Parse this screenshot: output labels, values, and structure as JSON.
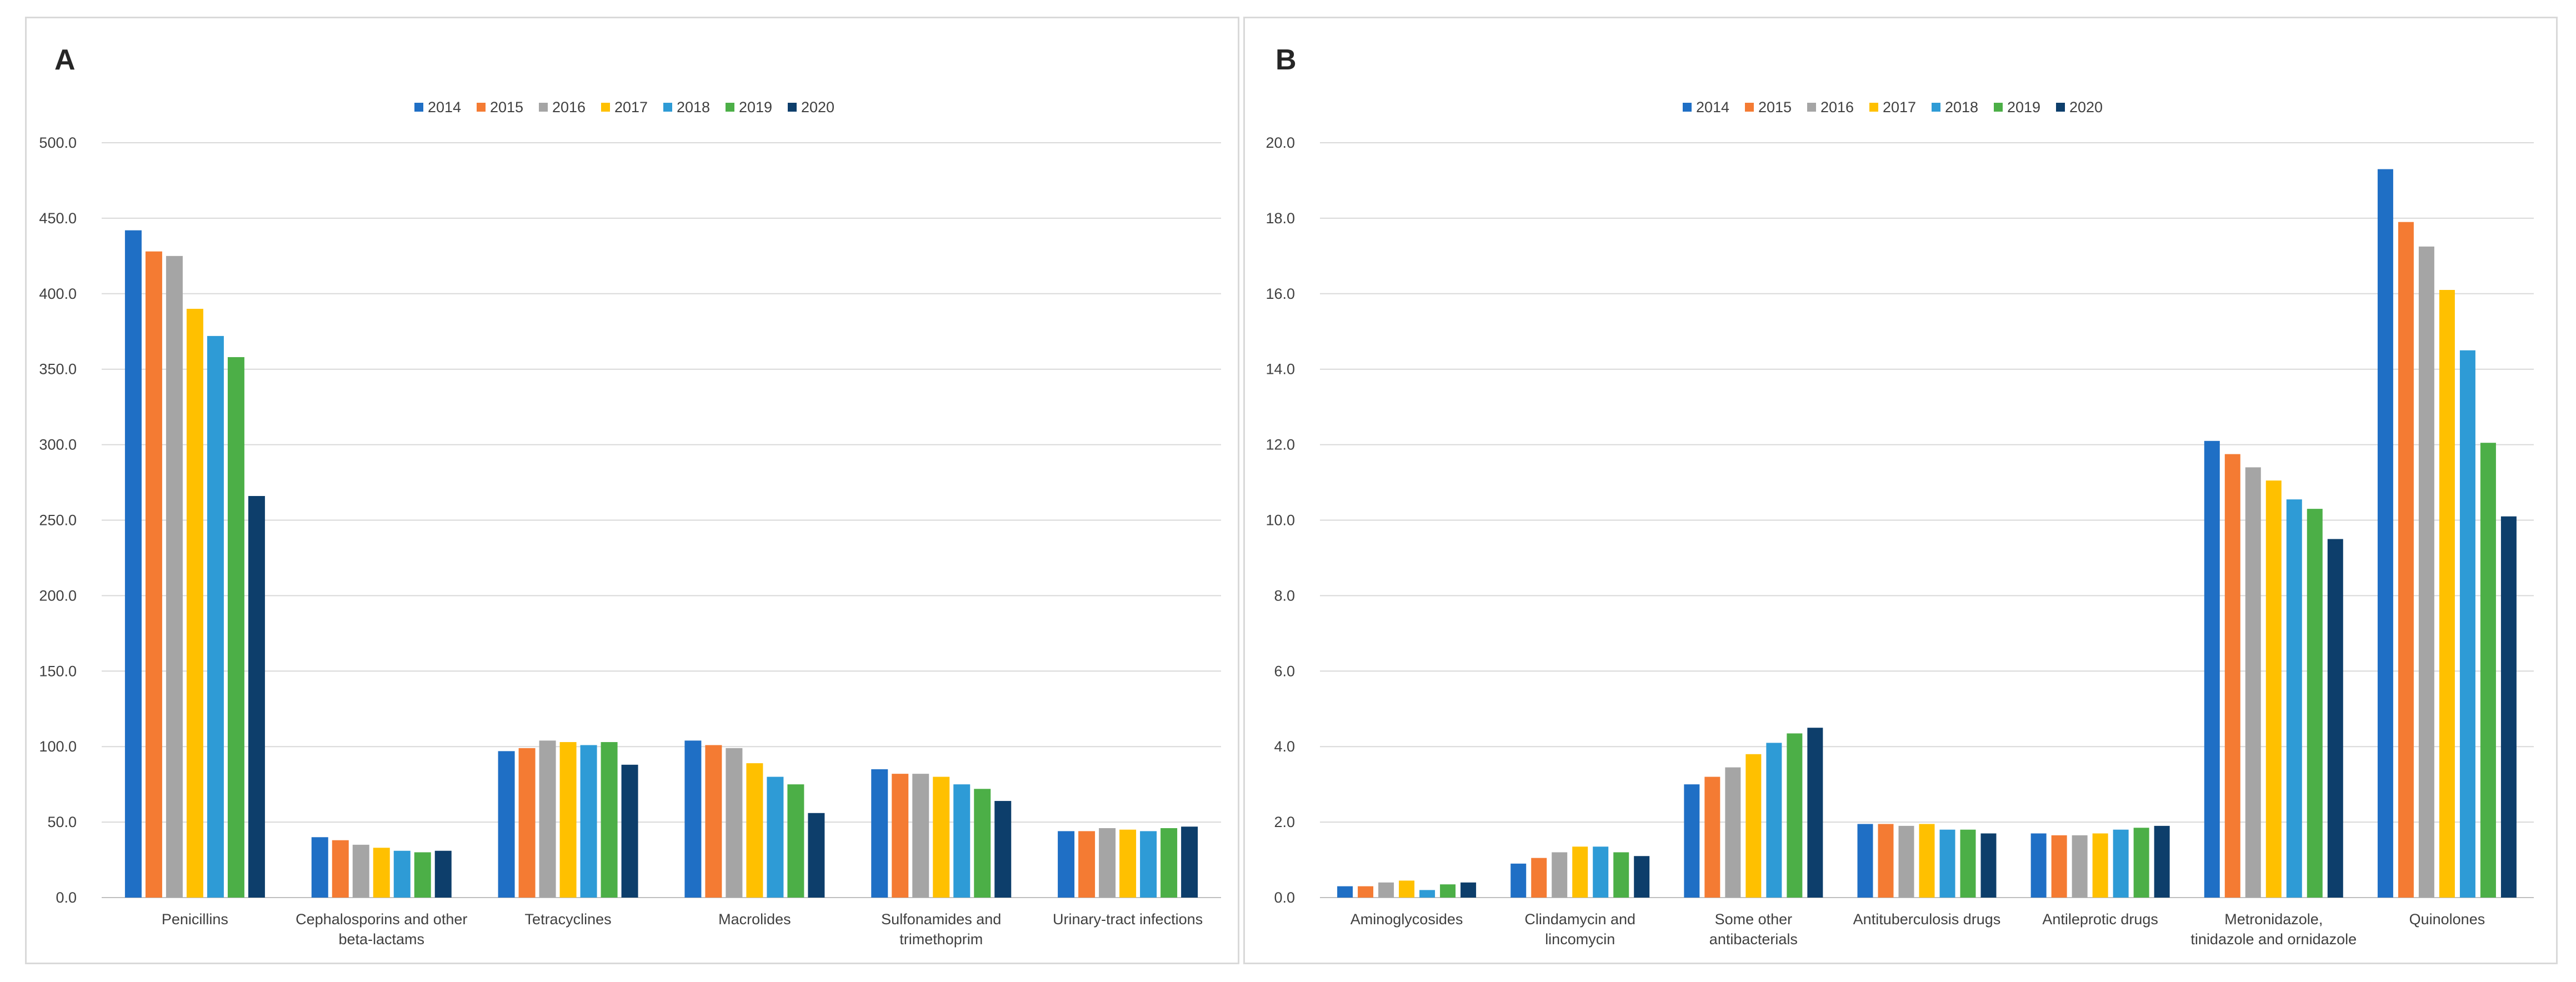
{
  "panels": [
    {
      "label": "A"
    },
    {
      "label": "B"
    }
  ],
  "chart_data": [
    {
      "type": "bar",
      "panel": "A",
      "title": "",
      "xlabel": "",
      "ylabel": "",
      "ylim": [
        0,
        500
      ],
      "yticks": [
        "0.0",
        "50.0",
        "100.0",
        "150.0",
        "200.0",
        "250.0",
        "300.0",
        "350.0",
        "400.0",
        "450.0",
        "500.0"
      ],
      "legend_position": "top-center",
      "categories": [
        [
          "Penicillins"
        ],
        [
          "Cephalosporins and other",
          "beta-lactams"
        ],
        [
          "Tetracyclines"
        ],
        [
          "Macrolides"
        ],
        [
          "Sulfonamides and",
          "trimethoprim"
        ],
        [
          "Urinary-tract infections"
        ]
      ],
      "series": [
        {
          "name": "2014",
          "color": "#1f6fc5",
          "values": [
            442,
            40,
            97,
            104,
            85,
            44
          ]
        },
        {
          "name": "2015",
          "color": "#f47b33",
          "values": [
            428,
            38,
            99,
            101,
            82,
            44
          ]
        },
        {
          "name": "2016",
          "color": "#a5a5a5",
          "values": [
            425,
            35,
            104,
            99,
            82,
            46
          ]
        },
        {
          "name": "2017",
          "color": "#ffc000",
          "values": [
            390,
            33,
            103,
            89,
            80,
            45
          ]
        },
        {
          "name": "2018",
          "color": "#2e9bd6",
          "values": [
            372,
            31,
            101,
            80,
            75,
            44
          ]
        },
        {
          "name": "2019",
          "color": "#4caf47",
          "values": [
            358,
            30,
            103,
            75,
            72,
            46
          ]
        },
        {
          "name": "2020",
          "color": "#0d3e6b",
          "values": [
            266,
            31,
            88,
            56,
            64,
            47
          ]
        }
      ]
    },
    {
      "type": "bar",
      "panel": "B",
      "title": "",
      "xlabel": "",
      "ylabel": "",
      "ylim": [
        0,
        20
      ],
      "yticks": [
        "0.0",
        "2.0",
        "4.0",
        "6.0",
        "8.0",
        "10.0",
        "12.0",
        "14.0",
        "16.0",
        "18.0",
        "20.0"
      ],
      "legend_position": "top-center",
      "categories": [
        [
          "Aminoglycosides"
        ],
        [
          "Clindamycin and",
          "lincomycin"
        ],
        [
          "Some other",
          "antibacterials"
        ],
        [
          "Antituberculosis drugs"
        ],
        [
          "Antileprotic drugs"
        ],
        [
          "Metronidazole,",
          "tinidazole and ornidazole"
        ],
        [
          "Quinolones"
        ]
      ],
      "series": [
        {
          "name": "2014",
          "color": "#1f6fc5",
          "values": [
            0.3,
            0.9,
            3.0,
            1.95,
            1.7,
            12.1,
            19.3
          ]
        },
        {
          "name": "2015",
          "color": "#f47b33",
          "values": [
            0.3,
            1.05,
            3.2,
            1.95,
            1.65,
            11.75,
            17.9
          ]
        },
        {
          "name": "2016",
          "color": "#a5a5a5",
          "values": [
            0.4,
            1.2,
            3.45,
            1.9,
            1.65,
            11.4,
            17.25
          ]
        },
        {
          "name": "2017",
          "color": "#ffc000",
          "values": [
            0.45,
            1.35,
            3.8,
            1.95,
            1.7,
            11.05,
            16.1
          ]
        },
        {
          "name": "2018",
          "color": "#2e9bd6",
          "values": [
            0.2,
            1.35,
            4.1,
            1.8,
            1.8,
            10.55,
            14.5
          ]
        },
        {
          "name": "2019",
          "color": "#4caf47",
          "values": [
            0.35,
            1.2,
            4.35,
            1.8,
            1.85,
            10.3,
            12.05
          ]
        },
        {
          "name": "2020",
          "color": "#0d3e6b",
          "values": [
            0.4,
            1.1,
            4.5,
            1.7,
            1.9,
            9.5,
            10.1
          ]
        }
      ]
    }
  ]
}
